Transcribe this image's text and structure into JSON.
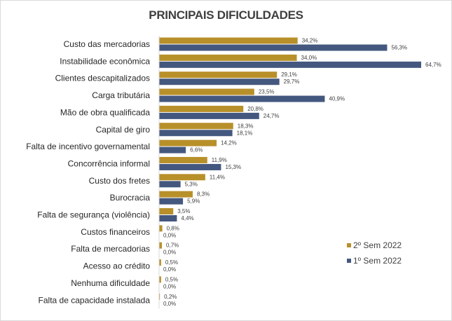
{
  "chart_data": {
    "type": "bar",
    "orientation": "horizontal",
    "title": "PRINCIPAIS DIFICULDADES",
    "legend_position": "bottom-right",
    "grid": false,
    "xlim": [
      0,
      70
    ],
    "categories": [
      "Custo das mercadorias",
      "Instabilidade econômica",
      "Clientes descapitalizados",
      "Carga tributária",
      "Mão de obra qualificada",
      "Capital de giro",
      "Falta de incentivo governamental",
      "Concorrência informal",
      "Custo dos fretes",
      "Burocracia",
      "Falta de segurança (violência)",
      "Custos financeiros",
      "Falta de mercadorias",
      "Acesso ao crédito",
      "Nenhuma dificuldade",
      "Falta de capacidade instalada"
    ],
    "series": [
      {
        "name": "2º Sem 2022",
        "color": "#b8902a",
        "values": [
          34.2,
          34.0,
          29.1,
          23.5,
          20.8,
          18.3,
          14.2,
          11.9,
          11.4,
          8.3,
          3.5,
          0.8,
          0.7,
          0.5,
          0.5,
          0.2
        ],
        "labels": [
          "34,2%",
          "34,0%",
          "29,1%",
          "23,5%",
          "20,8%",
          "18,3%",
          "14,2%",
          "11,9%",
          "11,4%",
          "8,3%",
          "3,5%",
          "0,8%",
          "0,7%",
          "0,5%",
          "0,5%",
          "0,2%"
        ]
      },
      {
        "name": "1º Sem 2022",
        "color": "#44587f",
        "values": [
          56.3,
          64.7,
          29.7,
          40.9,
          24.7,
          18.1,
          6.6,
          15.3,
          5.3,
          5.9,
          4.4,
          0.0,
          0.0,
          0.0,
          0.0,
          0.0
        ],
        "labels": [
          "56,3%",
          "64,7%",
          "29,7%",
          "40,9%",
          "24,7%",
          "18,1%",
          "6,6%",
          "15,3%",
          "5,3%",
          "5,9%",
          "4,4%",
          "0,0%",
          "0,0%",
          "0,0%",
          "0,0%",
          "0,0%"
        ]
      }
    ]
  }
}
